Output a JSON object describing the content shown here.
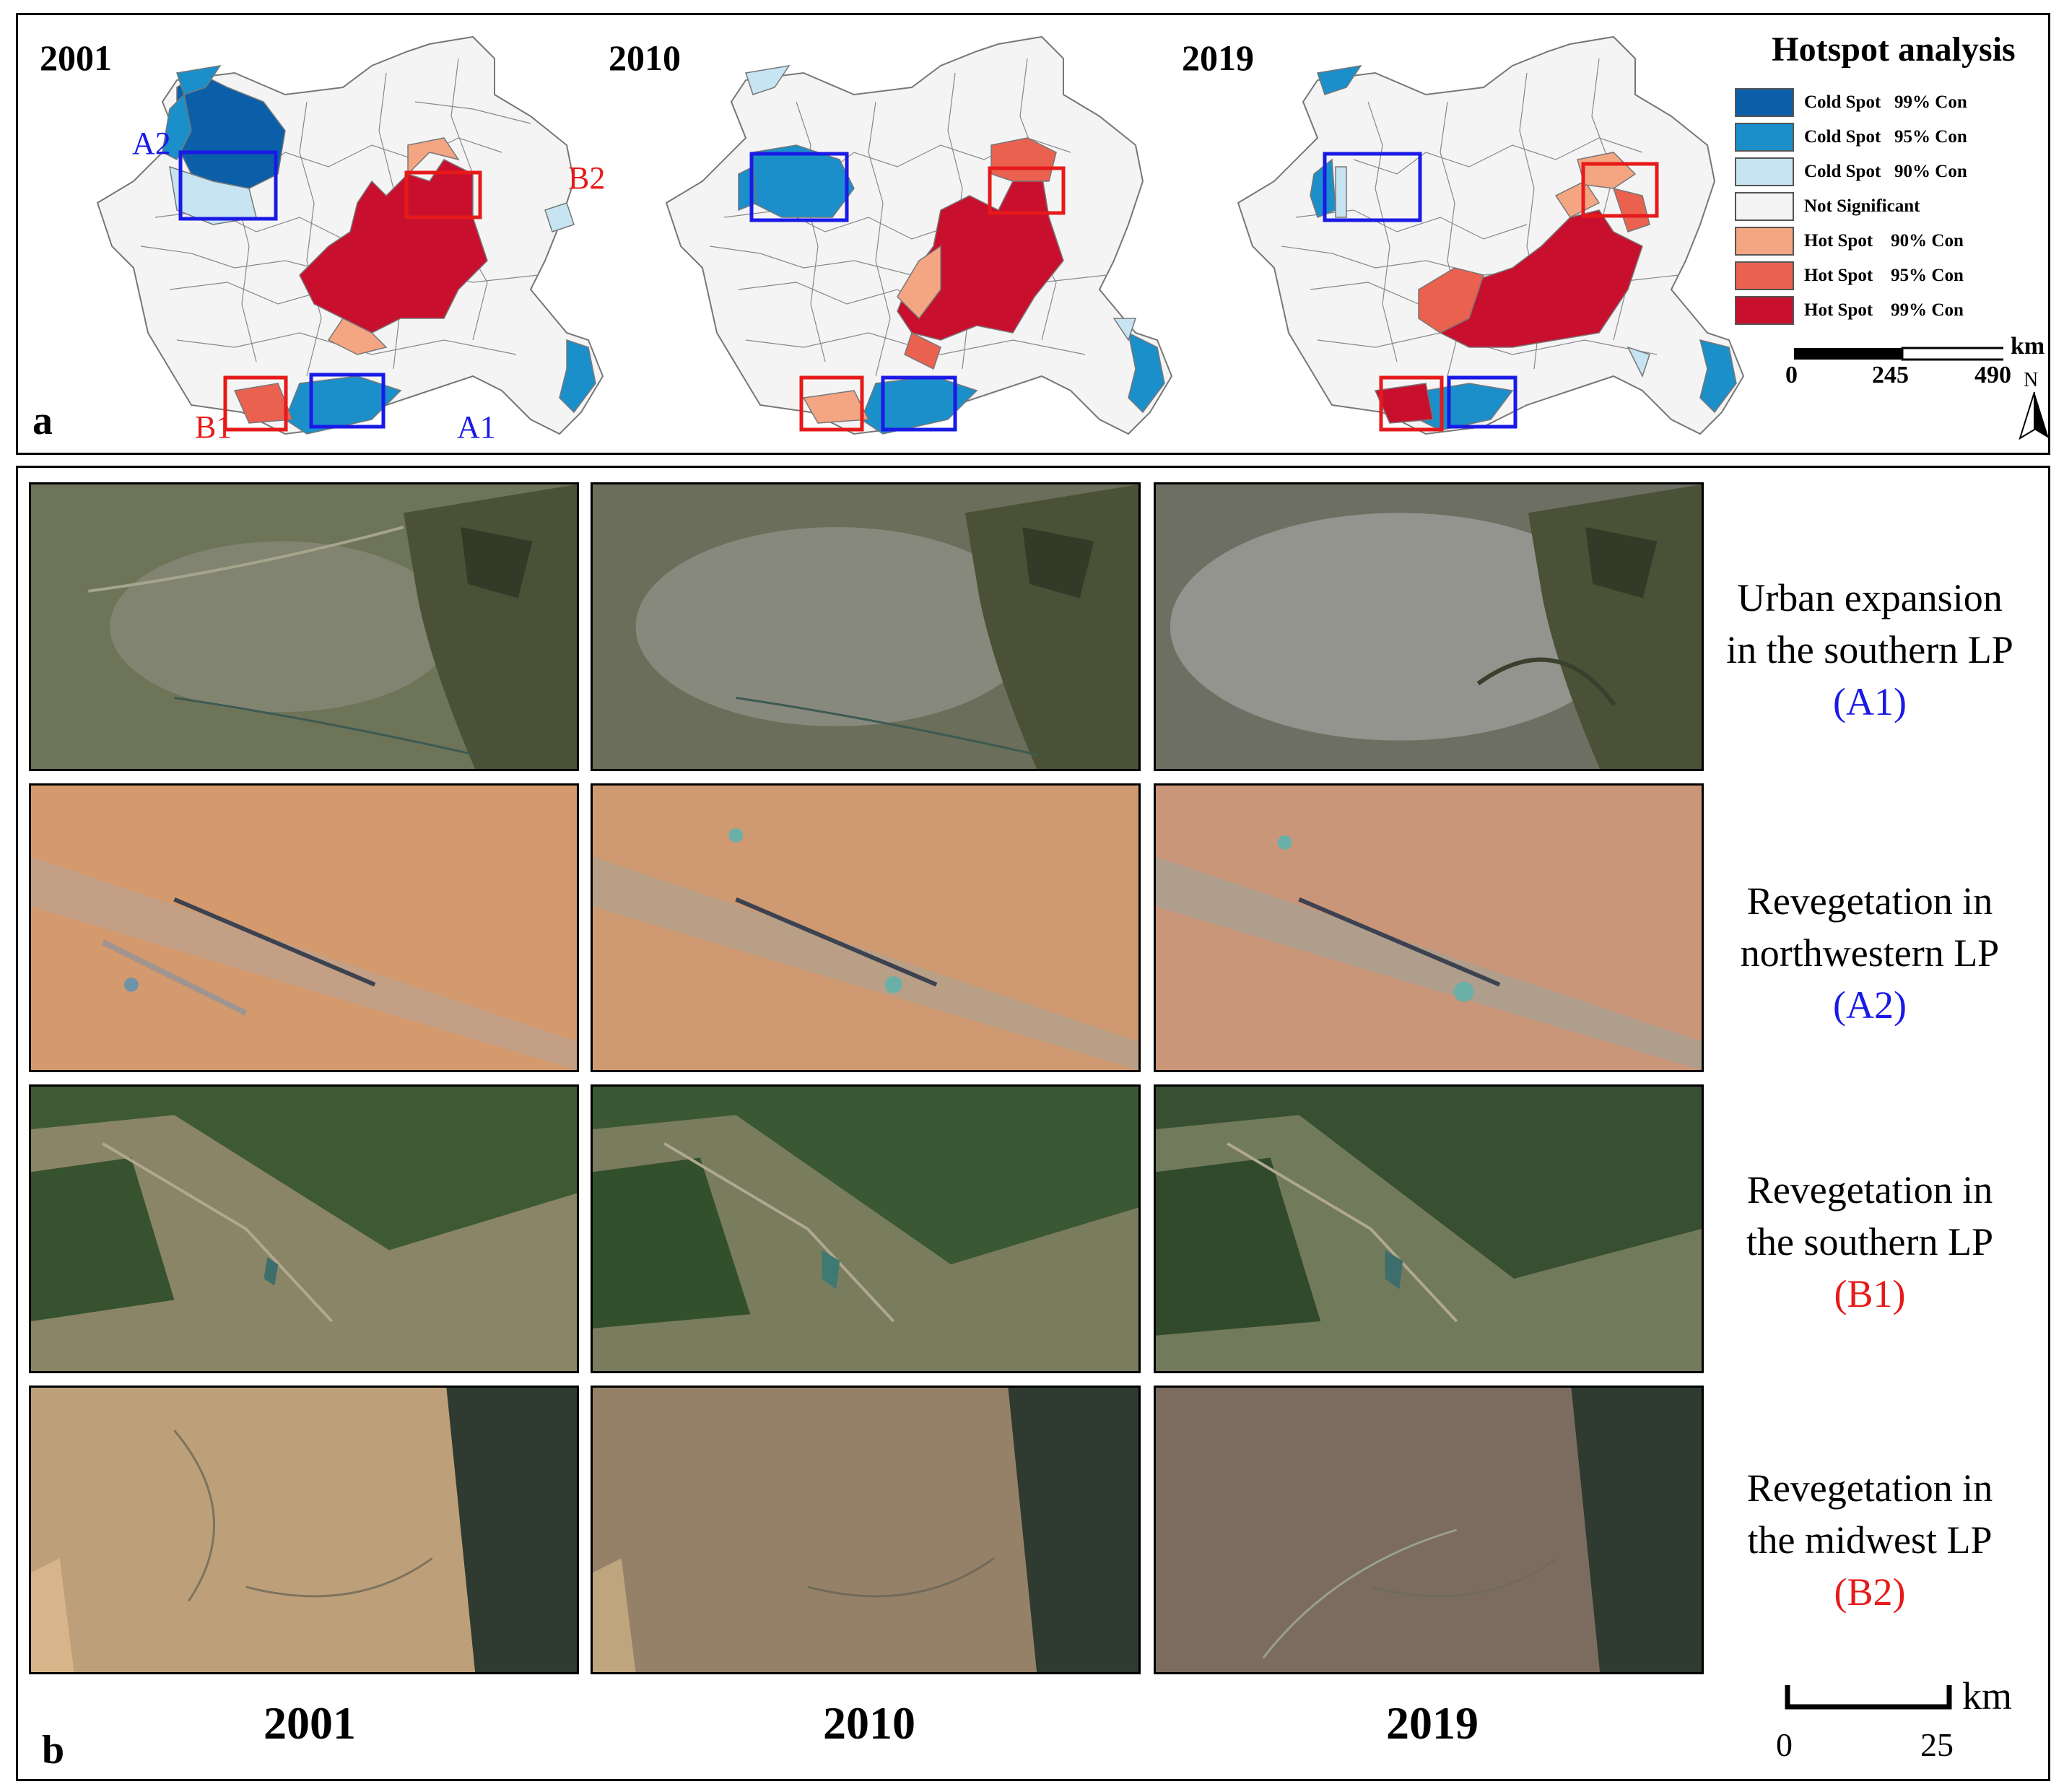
{
  "panel_a": {
    "letter": "a",
    "maps": [
      {
        "year": "2001",
        "labels": {
          "a2": "A2",
          "b2": "B2",
          "b1": "B1",
          "a1": "A1"
        }
      },
      {
        "year": "2010"
      },
      {
        "year": "2019"
      }
    ],
    "legend": {
      "title": "Hotspot analysis",
      "items": [
        {
          "label": "Cold Spot   99% Con",
          "color": "#0b5fa8"
        },
        {
          "label": "Cold Spot   95% Con",
          "color": "#1b8fc9"
        },
        {
          "label": "Cold Spot   90% Con",
          "color": "#c7e4f2"
        },
        {
          "label": "Not Significant",
          "color": "#f4f4f4"
        },
        {
          "label": "Hot Spot    90% Con",
          "color": "#f4a582"
        },
        {
          "label": "Hot Spot    95% Con",
          "color": "#ea6150"
        },
        {
          "label": "Hot Spot    99% Con",
          "color": "#c8102e"
        }
      ],
      "scale_unit": "km",
      "scale_ticks": [
        "0",
        "245",
        "490"
      ],
      "north": "N"
    }
  },
  "panel_b": {
    "letter": "b",
    "rows": [
      {
        "caption_line1": "Urban expansion",
        "caption_line2": "in the southern LP",
        "code": "(A1)",
        "code_color": "blue"
      },
      {
        "caption_line1": "Revegetation in",
        "caption_line2": "northwestern LP",
        "code": "(A2)",
        "code_color": "blue"
      },
      {
        "caption_line1": "Revegetation in",
        "caption_line2": "the southern LP",
        "code": "(B1)",
        "code_color": "red"
      },
      {
        "caption_line1": "Revegetation in",
        "caption_line2": "the midwest LP",
        "code": "(B2)",
        "code_color": "red"
      }
    ],
    "columns": [
      "2001",
      "2010",
      "2019"
    ],
    "scale_unit": "km",
    "scale_ticks": [
      "0",
      "25"
    ]
  }
}
